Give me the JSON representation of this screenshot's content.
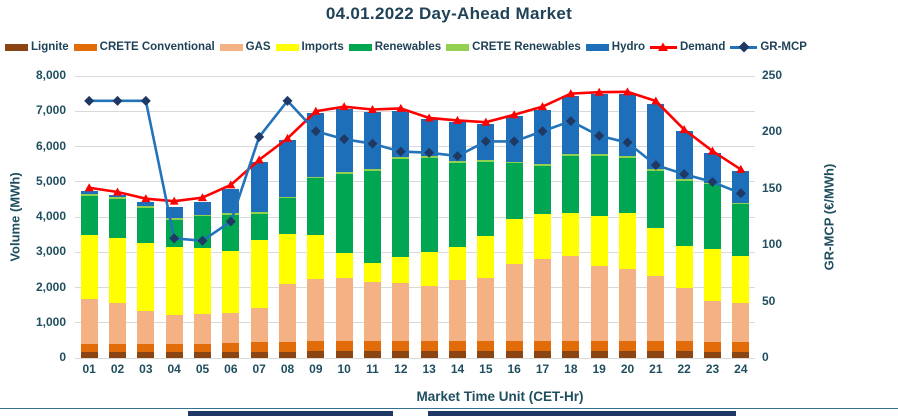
{
  "title": "04.01.2022  Day-Ahead Market",
  "colors": {
    "text": "#1F4E5F",
    "gridline": "#D9D9D9",
    "footer_rule": "#35708E",
    "footer_bar": "#1F3864"
  },
  "chart_data": {
    "type": "bar",
    "subtype": "stacked-bars-with-lines",
    "title": "04.01.2022  Day-Ahead Market",
    "xlabel": "Market Time Unit (CET-Hr)",
    "legend_position": "top",
    "grid": true,
    "categories": [
      "01",
      "02",
      "03",
      "04",
      "05",
      "06",
      "07",
      "08",
      "09",
      "10",
      "11",
      "12",
      "13",
      "14",
      "15",
      "16",
      "17",
      "18",
      "19",
      "20",
      "21",
      "22",
      "23",
      "24"
    ],
    "left_axis": {
      "title": "Volume (MWh)",
      "min": 0,
      "max": 8000,
      "step": 1000
    },
    "right_axis": {
      "title": "GR-MCP (€/MWh)",
      "min": 0,
      "max": 250,
      "step": 50
    },
    "series": [
      {
        "name": "Lignite",
        "type": "bar",
        "color": "#8B4513",
        "values": [
          170,
          170,
          170,
          170,
          170,
          170,
          180,
          180,
          190,
          190,
          190,
          190,
          190,
          190,
          190,
          190,
          190,
          200,
          200,
          200,
          200,
          190,
          180,
          180
        ]
      },
      {
        "name": "CRETE Conventional",
        "type": "bar",
        "color": "#E36C0A",
        "values": [
          230,
          230,
          230,
          230,
          230,
          260,
          270,
          270,
          280,
          280,
          280,
          280,
          280,
          280,
          280,
          280,
          280,
          290,
          290,
          290,
          290,
          280,
          270,
          270
        ]
      },
      {
        "name": "GAS",
        "type": "bar",
        "color": "#F4B183",
        "values": [
          1265,
          1160,
          930,
          820,
          860,
          860,
          980,
          1650,
          1760,
          1810,
          1690,
          1670,
          1570,
          1730,
          1800,
          2190,
          2330,
          2400,
          2120,
          2030,
          1840,
          1520,
          1170,
          1120
        ]
      },
      {
        "name": "Imports",
        "type": "bar",
        "color": "#FFFF00",
        "values": [
          1815,
          1840,
          1940,
          1930,
          1850,
          1740,
          1920,
          1430,
          1260,
          690,
          540,
          730,
          980,
          950,
          1200,
          1280,
          1280,
          1230,
          1420,
          1600,
          1370,
          1190,
          1460,
          1320
        ]
      },
      {
        "name": "Renewables",
        "type": "bar",
        "color": "#00A651",
        "values": [
          1120,
          1110,
          990,
          760,
          910,
          1030,
          740,
          1000,
          1610,
          2260,
          2600,
          2770,
          2660,
          2390,
          2100,
          1580,
          1370,
          1610,
          1700,
          1560,
          1600,
          1840,
          1850,
          1470
        ]
      },
      {
        "name": "CRETE Renewables",
        "type": "bar",
        "color": "#92D050",
        "values": [
          50,
          50,
          50,
          50,
          50,
          50,
          50,
          50,
          50,
          50,
          50,
          50,
          50,
          50,
          50,
          50,
          50,
          50,
          50,
          50,
          50,
          50,
          50,
          50
        ]
      },
      {
        "name": "Hydro",
        "type": "bar",
        "color": "#1E6FBA",
        "values": [
          100,
          60,
          120,
          330,
          360,
          680,
          1420,
          1610,
          1790,
          1800,
          1640,
          1330,
          1040,
          1110,
          1010,
          1290,
          1550,
          1650,
          1700,
          1750,
          1870,
          1370,
          840,
          890
        ]
      },
      {
        "name": "Demand",
        "type": "line",
        "axis": "left",
        "color": "#FF0000",
        "marker": "triangle",
        "marker_color": "#FF0000",
        "values": [
          4830,
          4710,
          4520,
          4450,
          4550,
          4910,
          5620,
          6230,
          7000,
          7130,
          7050,
          7080,
          6810,
          6740,
          6690,
          6900,
          7130,
          7500,
          7540,
          7550,
          7290,
          6480,
          5870,
          5350
        ]
      },
      {
        "name": "GR-MCP",
        "type": "line",
        "axis": "right",
        "color": "#2273B9",
        "marker": "diamond",
        "marker_color": "#1F3864",
        "values": [
          228,
          228,
          228,
          106,
          104,
          121,
          196,
          228,
          201,
          194,
          190,
          183,
          182,
          179,
          192,
          192,
          201,
          210,
          197,
          191,
          171,
          163,
          156,
          146
        ]
      }
    ]
  }
}
